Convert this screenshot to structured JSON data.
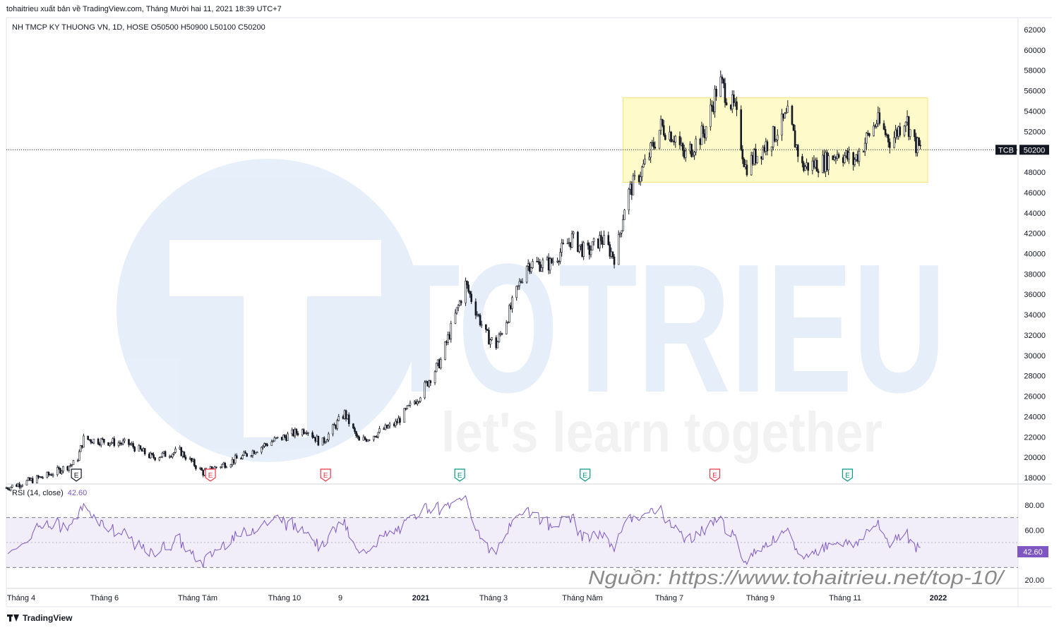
{
  "header": {
    "publisher": "tohaitrieu xuất bản về TradingView.com, Tháng Mười hai 11, 2021 18:39 UTC+7",
    "symbol_line": "NH TMCP KY THUONG VN, 1D, HOSE  O50500  H50900  L50100  C50200"
  },
  "watermark": {
    "brand": "TOTRIEU",
    "tagline": "let's learn together"
  },
  "source_note": "Nguồn: https://www.tohaitrieu.net/top-10/",
  "footer": {
    "brand": "TradingView"
  },
  "colors": {
    "candle": "#131722",
    "zone_fill": "#fff59d",
    "rsi_line": "#7e57c2",
    "rsi_band": "#ede7f6",
    "earnings_red": "#f23645",
    "earnings_dark": "#131722",
    "earnings_green": "#089981",
    "watermark": "#3d86d6"
  },
  "price_scale": {
    "ticks": [
      "62000",
      "60000",
      "58000",
      "56000",
      "54000",
      "52000",
      "48000",
      "46000",
      "44000",
      "42000",
      "40000",
      "38000",
      "36000",
      "34000",
      "32000",
      "30000",
      "28000",
      "26000",
      "24000",
      "22000",
      "20000",
      "18000"
    ]
  },
  "last_price": {
    "ticker": "TCB",
    "value": "50200"
  },
  "rsi": {
    "title": "RSI (14, close)",
    "value": "42.60",
    "ticks": [
      "80.00",
      "60.00",
      "20.00"
    ],
    "upper": 70,
    "lower": 30,
    "mid": 50
  },
  "time_axis": [
    "Tháng 4",
    "Tháng 6",
    "Tháng Tám",
    "Tháng 10",
    "9",
    "2021",
    "Tháng 3",
    "Tháng Năm",
    "Tháng 7",
    "Tháng 9",
    "Tháng 11",
    "2022"
  ],
  "earnings_markers": [
    {
      "label": "E",
      "type": "dark",
      "date": "2020-05-10"
    },
    {
      "label": "E",
      "type": "red",
      "date": "2020-08-10"
    },
    {
      "label": "E",
      "type": "red",
      "date": "2020-10-28"
    },
    {
      "label": "E",
      "type": "green",
      "date": "2021-01-28"
    },
    {
      "label": "E",
      "type": "green",
      "date": "2021-04-24"
    },
    {
      "label": "E",
      "type": "red",
      "date": "2021-07-22"
    },
    {
      "label": "E",
      "type": "green",
      "date": "2021-10-21"
    }
  ],
  "chart_data": {
    "type": "candlestick",
    "title": "NH TMCP KY THUONG VN, 1D, HOSE",
    "x_range": [
      "2020-03-23",
      "2022-02-15"
    ],
    "ylim": [
      17500,
      63000
    ],
    "zone": {
      "x0": "2021-05-20",
      "x1": "2021-12-15",
      "y0": 47000,
      "y1": 55300
    },
    "anchors": [
      {
        "date": "2020-03-23",
        "price": 17000
      },
      {
        "date": "2020-04-20",
        "price": 18200
      },
      {
        "date": "2020-05-10",
        "price": 19500
      },
      {
        "date": "2020-05-15",
        "price": 21800
      },
      {
        "date": "2020-06-15",
        "price": 21300
      },
      {
        "date": "2020-07-01",
        "price": 20000
      },
      {
        "date": "2020-07-20",
        "price": 20600
      },
      {
        "date": "2020-08-05",
        "price": 18500
      },
      {
        "date": "2020-08-31",
        "price": 20000
      },
      {
        "date": "2020-09-20",
        "price": 21500
      },
      {
        "date": "2020-10-15",
        "price": 22800
      },
      {
        "date": "2020-10-25",
        "price": 21300
      },
      {
        "date": "2020-11-10",
        "price": 24300
      },
      {
        "date": "2020-11-20",
        "price": 21500
      },
      {
        "date": "2020-12-15",
        "price": 23300
      },
      {
        "date": "2020-12-31",
        "price": 26000
      },
      {
        "date": "2021-01-15",
        "price": 29500
      },
      {
        "date": "2021-02-01",
        "price": 37000
      },
      {
        "date": "2021-02-15",
        "price": 32000
      },
      {
        "date": "2021-02-22",
        "price": 31000
      },
      {
        "date": "2021-03-05",
        "price": 35000
      },
      {
        "date": "2021-03-15",
        "price": 39000
      },
      {
        "date": "2021-03-31",
        "price": 39000
      },
      {
        "date": "2021-04-15",
        "price": 41500
      },
      {
        "date": "2021-04-25",
        "price": 40000
      },
      {
        "date": "2021-05-05",
        "price": 41500
      },
      {
        "date": "2021-05-15",
        "price": 39500
      },
      {
        "date": "2021-05-22",
        "price": 45500
      },
      {
        "date": "2021-06-05",
        "price": 49000
      },
      {
        "date": "2021-06-15",
        "price": 52500
      },
      {
        "date": "2021-06-25",
        "price": 51500
      },
      {
        "date": "2021-07-01",
        "price": 49500
      },
      {
        "date": "2021-07-15",
        "price": 52000
      },
      {
        "date": "2021-07-25",
        "price": 57000
      },
      {
        "date": "2021-08-05",
        "price": 54000
      },
      {
        "date": "2021-08-12",
        "price": 48500
      },
      {
        "date": "2021-08-31",
        "price": 51500
      },
      {
        "date": "2021-09-10",
        "price": 53500
      },
      {
        "date": "2021-09-20",
        "price": 48500
      },
      {
        "date": "2021-10-05",
        "price": 49000
      },
      {
        "date": "2021-10-15",
        "price": 50000
      },
      {
        "date": "2021-10-25",
        "price": 49000
      },
      {
        "date": "2021-11-10",
        "price": 53000
      },
      {
        "date": "2021-11-20",
        "price": 51000
      },
      {
        "date": "2021-11-30",
        "price": 53500
      },
      {
        "date": "2021-12-05",
        "price": 51000
      },
      {
        "date": "2021-12-10",
        "price": 50200
      }
    ]
  }
}
